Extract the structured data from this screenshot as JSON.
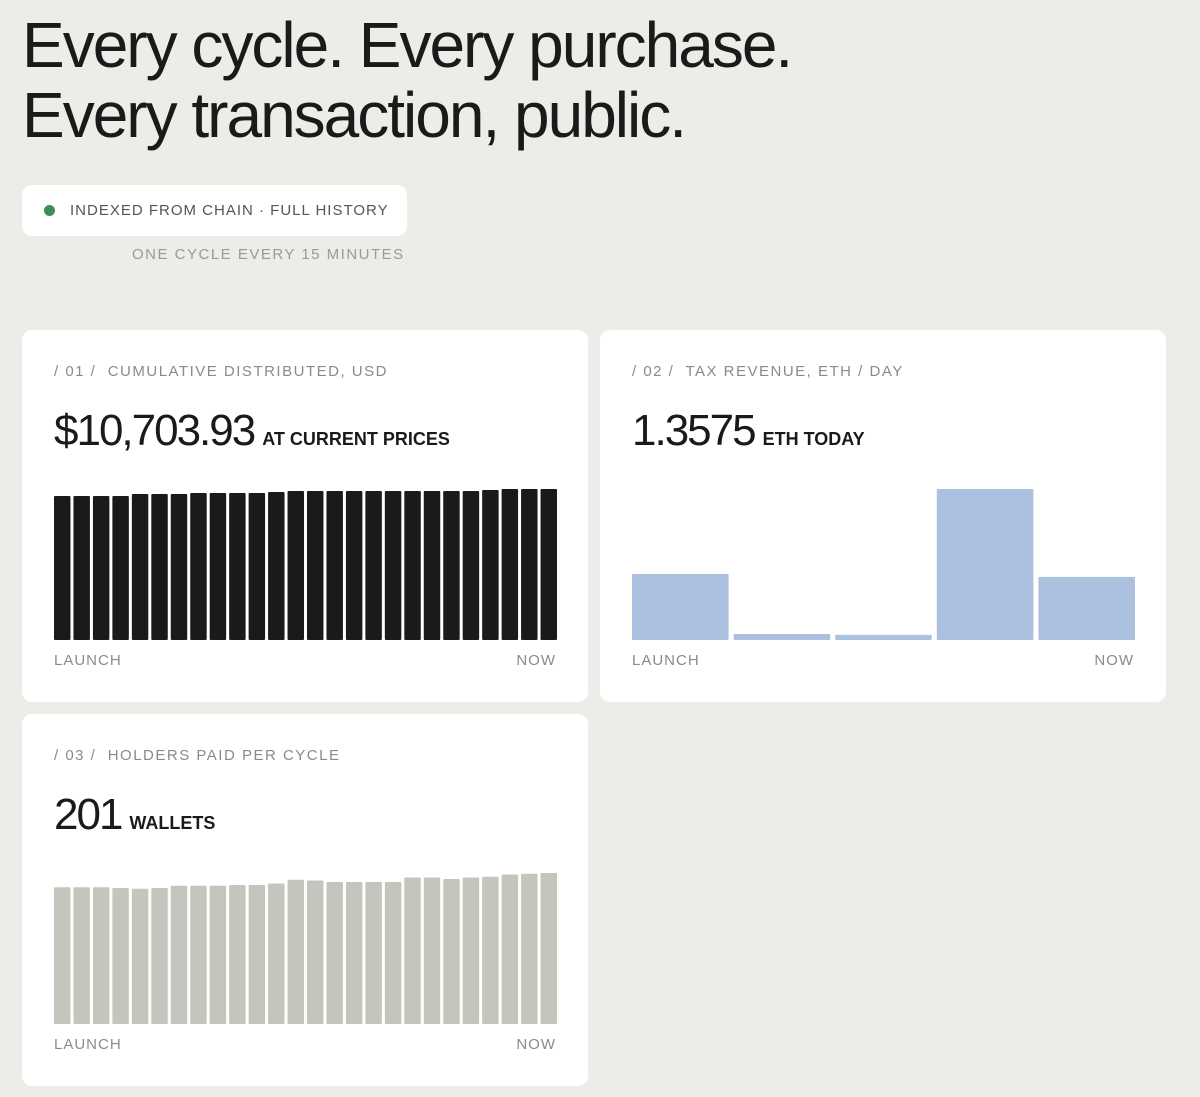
{
  "header": {
    "title_lines": [
      "Every cycle. Every purchase.",
      "Every transaction, public."
    ],
    "badge": "INDEXED FROM CHAIN · FULL HISTORY",
    "subtitle": "ONE CYCLE EVERY 15 MINUTES"
  },
  "cards": [
    {
      "index": "/ 01 /",
      "label": "CUMULATIVE DISTRIBUTED, USD",
      "value": "$10,703.93",
      "unit": "AT CURRENT PRICES",
      "chart": {
        "type": "bar",
        "color": "#1a1a1a",
        "start": "LAUNCH",
        "end": "NOW",
        "values": [
          10208,
          10208,
          10208,
          10208,
          10350,
          10350,
          10350,
          10420,
          10420,
          10420,
          10420,
          10491,
          10562,
          10562,
          10562,
          10562,
          10562,
          10562,
          10562,
          10562,
          10562,
          10562,
          10633,
          10704,
          10704,
          10704
        ]
      }
    },
    {
      "index": "/ 02 /",
      "label": "TAX REVENUE, ETH / DAY",
      "value": "1.3575",
      "unit": "ETH TODAY",
      "chart": {
        "type": "bar",
        "color": "#abc1df",
        "start": "LAUNCH",
        "end": "NOW",
        "values": [
          1.42,
          0.13,
          0.11,
          3.25,
          1.3575
        ]
      }
    },
    {
      "index": "/ 03 /",
      "label": "HOLDERS PAID PER CYCLE",
      "value": "201",
      "unit": "WALLETS",
      "chart": {
        "type": "bar",
        "color": "#c6c5bd",
        "start": "LAUNCH",
        "end": "NOW",
        "values": [
          182,
          182,
          182,
          181,
          180,
          181,
          184,
          184,
          184,
          185,
          185,
          187,
          192,
          191,
          189,
          189,
          189,
          189,
          195,
          195,
          193,
          195,
          196,
          199,
          200,
          201
        ]
      }
    }
  ]
}
